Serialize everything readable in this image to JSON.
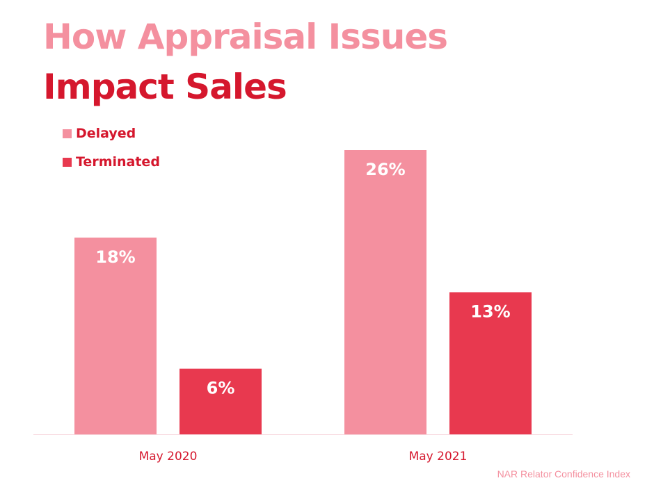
{
  "header": {
    "title_line1": "How Appraisal Issues",
    "title_line2": "Impact Sales"
  },
  "source": "NAR Relator Confidence Index",
  "colors": {
    "delayed": "#f4909f",
    "terminated": "#e8394f",
    "title_light": "#f4909f",
    "title_dark": "#d5172d"
  },
  "chart_data": {
    "type": "bar",
    "categories": [
      "May 2020",
      "May 2021"
    ],
    "series": [
      {
        "name": "Delayed",
        "values": [
          18,
          26
        ],
        "labels": [
          "18%",
          "26%"
        ]
      },
      {
        "name": "Terminated",
        "values": [
          6,
          13
        ],
        "labels": [
          "6%",
          "13%"
        ]
      }
    ],
    "ylim": [
      0,
      26
    ],
    "grid": false,
    "legend_position": "top-left"
  }
}
